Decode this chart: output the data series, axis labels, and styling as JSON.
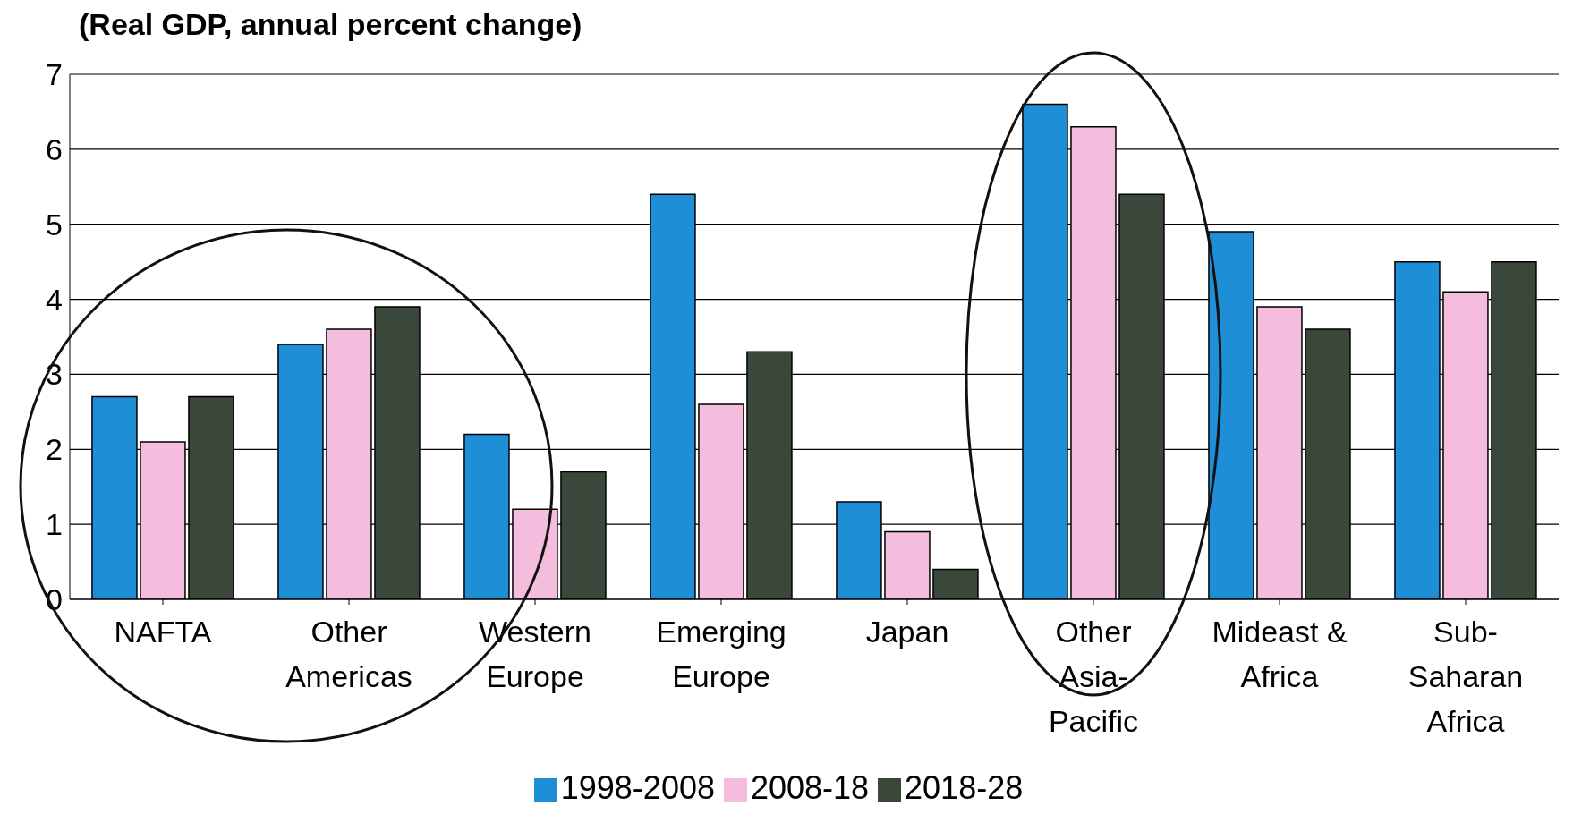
{
  "chart_data": {
    "type": "bar",
    "title": "(Real GDP, annual percent change)",
    "categories": [
      "NAFTA",
      "Other Americas",
      "Western Europe",
      "Emerging Europe",
      "Japan",
      "Other Asia-Pacific",
      "Mideast & Africa",
      "Sub-Saharan Africa"
    ],
    "series": [
      {
        "name": "1998-2008",
        "color": "#1e8fd6",
        "values": [
          2.7,
          3.4,
          2.2,
          5.4,
          1.3,
          6.6,
          4.9,
          4.5
        ]
      },
      {
        "name": "2008-18",
        "color": "#f5bddd",
        "values": [
          2.1,
          3.6,
          1.2,
          2.6,
          0.9,
          6.3,
          3.9,
          4.1
        ]
      },
      {
        "name": "2018-28",
        "color": "#3b473b",
        "values": [
          2.7,
          3.9,
          1.7,
          3.3,
          0.4,
          5.4,
          3.6,
          4.5
        ]
      }
    ],
    "ylim": [
      0,
      7
    ],
    "yticks": [
      0,
      1,
      2,
      3,
      4,
      5,
      6,
      7
    ],
    "grid": "y",
    "legend": "bottom"
  }
}
